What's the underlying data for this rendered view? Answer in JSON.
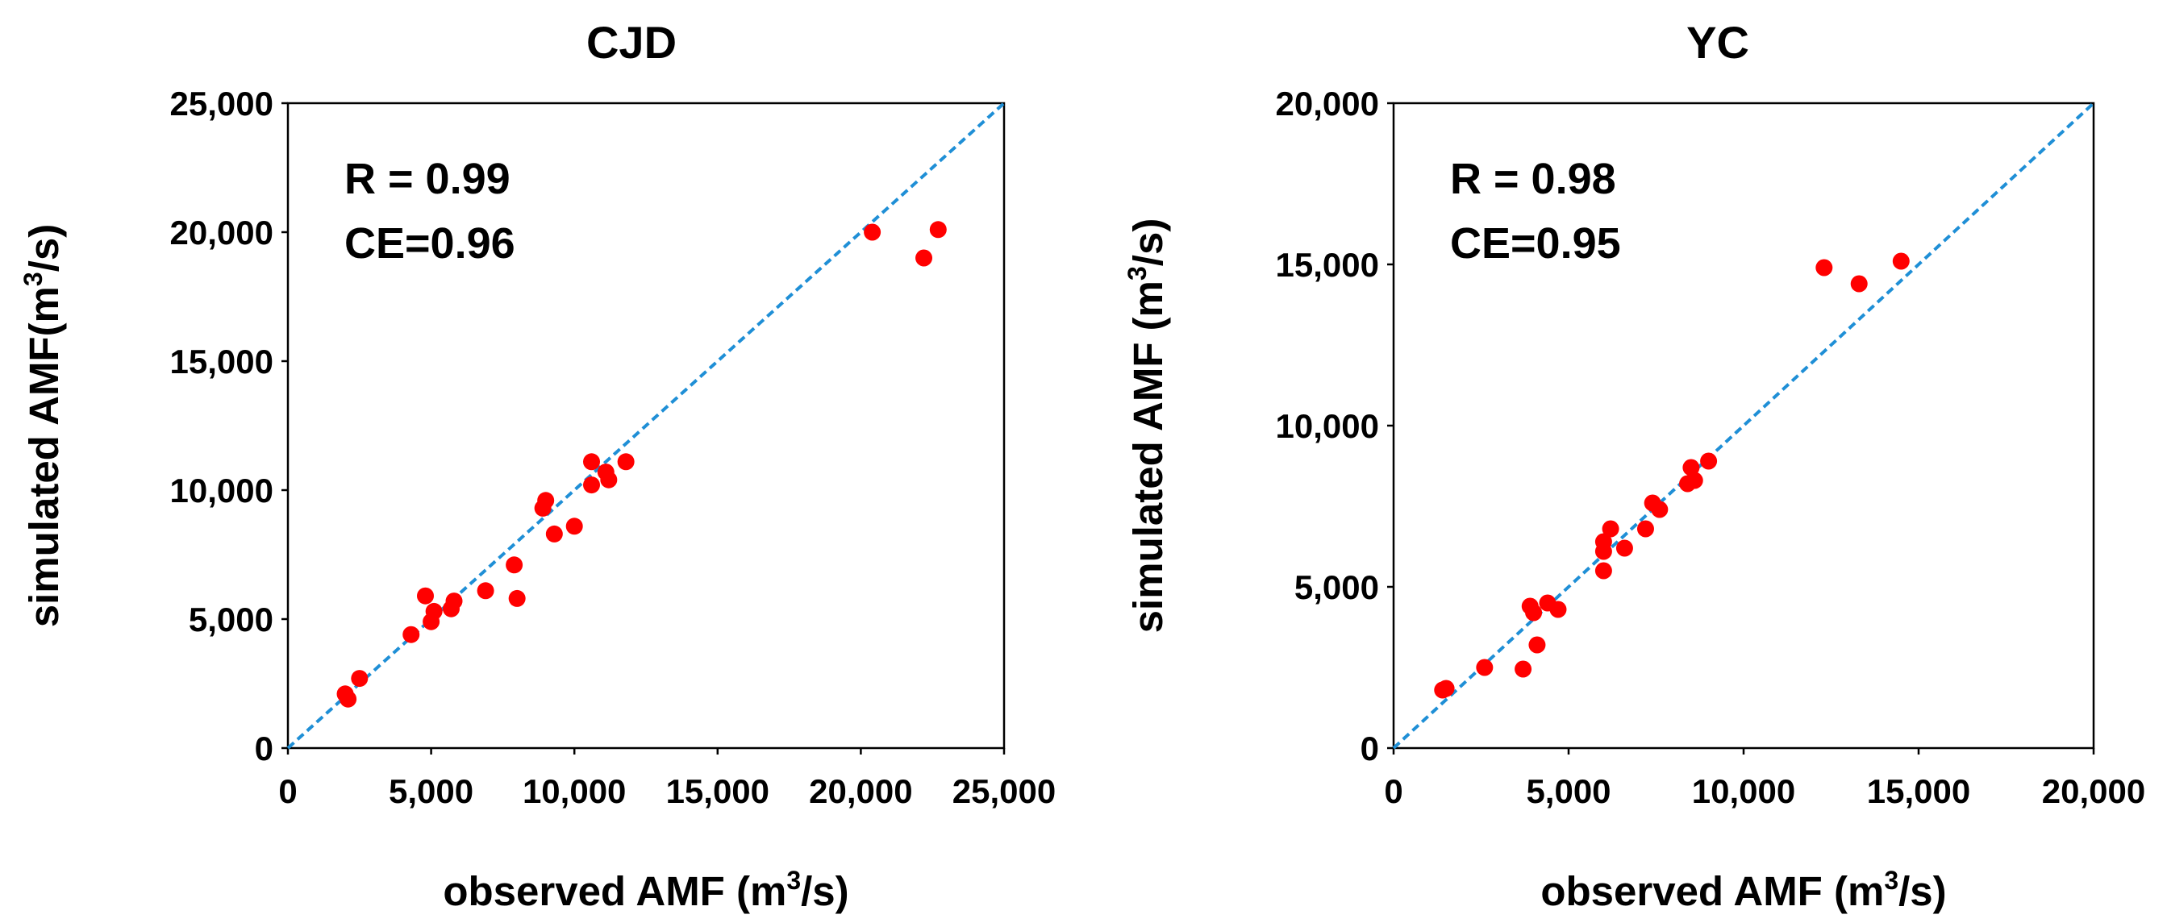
{
  "chart_data": [
    {
      "type": "scatter",
      "title": "CJD",
      "xlabel": "observed AMF (m",
      "xlabel_sup": "3",
      "xlabel_tail": "/s)",
      "ylabel": "simulated AMF(m",
      "ylabel_sup": "3",
      "ylabel_tail": "/s)",
      "xlim": [
        0,
        25000
      ],
      "ylim": [
        0,
        25000
      ],
      "xticks": [
        0,
        5000,
        10000,
        15000,
        20000,
        25000
      ],
      "yticks": [
        0,
        5000,
        10000,
        15000,
        20000,
        25000
      ],
      "xtick_labels": [
        "0",
        "5,000",
        "10,000",
        "15,000",
        "20,000",
        "25,000"
      ],
      "ytick_labels": [
        "0",
        "5,000",
        "10,000",
        "15,000",
        "20,000",
        "25,000"
      ],
      "stats": {
        "r": "R = 0.99",
        "ce": "CE=0.96"
      },
      "reference_line": "1:1",
      "marker_color": "#ff0000",
      "line_color": "#1f8fd6",
      "points": [
        {
          "x": 2000,
          "y": 2100
        },
        {
          "x": 2100,
          "y": 1900
        },
        {
          "x": 2500,
          "y": 2700
        },
        {
          "x": 4300,
          "y": 4400
        },
        {
          "x": 4800,
          "y": 5900
        },
        {
          "x": 5000,
          "y": 4900
        },
        {
          "x": 5100,
          "y": 5300
        },
        {
          "x": 5700,
          "y": 5400
        },
        {
          "x": 5800,
          "y": 5700
        },
        {
          "x": 6900,
          "y": 6100
        },
        {
          "x": 7900,
          "y": 7100
        },
        {
          "x": 8000,
          "y": 5800
        },
        {
          "x": 8900,
          "y": 9300
        },
        {
          "x": 9000,
          "y": 9600
        },
        {
          "x": 9300,
          "y": 8300
        },
        {
          "x": 10000,
          "y": 8600
        },
        {
          "x": 10600,
          "y": 11100
        },
        {
          "x": 10600,
          "y": 10200
        },
        {
          "x": 11100,
          "y": 10700
        },
        {
          "x": 11200,
          "y": 10400
        },
        {
          "x": 11800,
          "y": 11100
        },
        {
          "x": 20400,
          "y": 20000
        },
        {
          "x": 22200,
          "y": 19000
        },
        {
          "x": 22700,
          "y": 20100
        }
      ]
    },
    {
      "type": "scatter",
      "title": "YC",
      "xlabel": "observed AMF (m",
      "xlabel_sup": "3",
      "xlabel_tail": "/s)",
      "ylabel": "simulated AMF (m",
      "ylabel_sup": "3",
      "ylabel_tail": "/s)",
      "xlim": [
        0,
        20000
      ],
      "ylim": [
        0,
        20000
      ],
      "xticks": [
        0,
        5000,
        10000,
        15000,
        20000
      ],
      "yticks": [
        0,
        5000,
        10000,
        15000,
        20000
      ],
      "xtick_labels": [
        "0",
        "5,000",
        "10,000",
        "15,000",
        "20,000"
      ],
      "ytick_labels": [
        "0",
        "5,000",
        "10,000",
        "15,000",
        "20,000"
      ],
      "stats": {
        "r": "R = 0.98",
        "ce": "CE=0.95"
      },
      "reference_line": "1:1",
      "marker_color": "#ff0000",
      "line_color": "#1f8fd6",
      "points": [
        {
          "x": 1400,
          "y": 1800
        },
        {
          "x": 1500,
          "y": 1850
        },
        {
          "x": 2600,
          "y": 2500
        },
        {
          "x": 3700,
          "y": 2450
        },
        {
          "x": 3900,
          "y": 4400
        },
        {
          "x": 4000,
          "y": 4200
        },
        {
          "x": 4100,
          "y": 3200
        },
        {
          "x": 4400,
          "y": 4500
        },
        {
          "x": 4700,
          "y": 4300
        },
        {
          "x": 6000,
          "y": 6400
        },
        {
          "x": 6000,
          "y": 6100
        },
        {
          "x": 6000,
          "y": 5500
        },
        {
          "x": 6200,
          "y": 6800
        },
        {
          "x": 6600,
          "y": 6200
        },
        {
          "x": 7200,
          "y": 6800
        },
        {
          "x": 7400,
          "y": 7600
        },
        {
          "x": 7600,
          "y": 7400
        },
        {
          "x": 8400,
          "y": 8200
        },
        {
          "x": 8500,
          "y": 8700
        },
        {
          "x": 8600,
          "y": 8300
        },
        {
          "x": 9000,
          "y": 8900
        },
        {
          "x": 12300,
          "y": 14900
        },
        {
          "x": 13300,
          "y": 14400
        },
        {
          "x": 14500,
          "y": 15100
        }
      ]
    }
  ]
}
